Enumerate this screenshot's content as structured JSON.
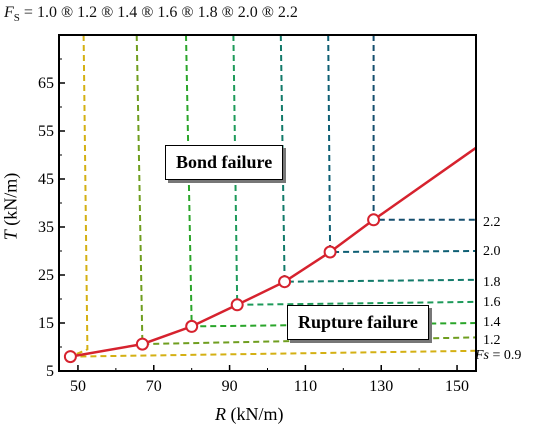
{
  "header": {
    "fs_symbol": "F",
    "fs_sub": "S",
    "fs_eq": " = ",
    "fs_text": "1.0 ® 1.2 ® 1.4 ® 1.6 ® 1.8 ® 2.0 ® 2.2"
  },
  "regions": {
    "bond": "Bond failure",
    "rupture": "Rupture failure"
  },
  "axis": {
    "x_sym": "R",
    "x_unit": " (kN/m)",
    "y_sym": "T",
    "y_unit": " (kN/m)"
  },
  "fs09": {
    "sym": "Fs",
    "eq": " = 0.9"
  },
  "right_labels": [
    "2.2",
    "2.0",
    "1.8",
    "1.6",
    "1.4",
    "1.2"
  ],
  "chart_data": {
    "type": "line",
    "xlabel": "R (kN/m)",
    "ylabel": "T (kN/m)",
    "xlim": [
      45,
      155
    ],
    "ylim": [
      5,
      75
    ],
    "x_ticks": [
      50,
      70,
      90,
      110,
      130,
      150
    ],
    "y_ticks": [
      5,
      15,
      25,
      35,
      45,
      55,
      65
    ],
    "colors": {
      "main": "#d6222e",
      "fs10": "#d4b013",
      "fs12": "#6f9e1f",
      "fs14": "#2aa52a",
      "fs16": "#1e9a5a",
      "fs18": "#127a6a",
      "fs20": "#0e5f74",
      "fs22": "#154e6e"
    },
    "main_line": {
      "x": [
        48,
        67,
        80,
        92,
        104.5,
        116.5,
        128,
        155
      ],
      "y": [
        8,
        10.6,
        14.3,
        18.8,
        23.6,
        29.8,
        36.5,
        51.5
      ]
    },
    "markers": {
      "x": [
        48,
        67,
        80,
        92,
        104.5,
        116.5,
        128
      ],
      "y": [
        8,
        10.6,
        14.3,
        18.8,
        23.6,
        29.8,
        36.5
      ]
    },
    "series": [
      {
        "name": "Fs = 0.9",
        "x": [
          48,
          155
        ],
        "y": [
          8,
          9.2
        ],
        "color": "fs10"
      },
      {
        "name": "1.0",
        "x": [
          51.5,
          52.5,
          48
        ],
        "y": [
          75,
          9.5,
          8
        ],
        "color": "fs10"
      },
      {
        "name": "1.2",
        "x": [
          65.5,
          67,
          155
        ],
        "y": [
          75,
          10.6,
          12.0
        ],
        "color": "fs12"
      },
      {
        "name": "1.4",
        "x": [
          78.5,
          80,
          155
        ],
        "y": [
          75,
          14.3,
          15.0
        ],
        "color": "fs14"
      },
      {
        "name": "1.6",
        "x": [
          91,
          92,
          155
        ],
        "y": [
          75,
          18.8,
          19.4
        ],
        "color": "fs16"
      },
      {
        "name": "1.8",
        "x": [
          103.5,
          104.5,
          155
        ],
        "y": [
          75,
          23.6,
          24.0
        ],
        "color": "fs18"
      },
      {
        "name": "2.0",
        "x": [
          116,
          116.5,
          155
        ],
        "y": [
          75,
          29.8,
          30.0
        ],
        "color": "fs20"
      },
      {
        "name": "2.2",
        "x": [
          128,
          128,
          155
        ],
        "y": [
          75,
          36.5,
          36.5
        ],
        "color": "fs22"
      }
    ]
  }
}
